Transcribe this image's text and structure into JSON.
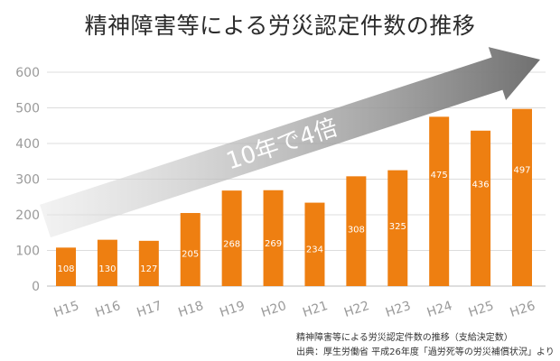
{
  "title": "精神障害等による労災認定件数の推移",
  "notes": {
    "line1": "精神障害等による労災認定件数の推移（支給決定数）",
    "line2": "出典：厚生労働省 平成26年度「過労死等の労災補償状況」より"
  },
  "colors": {
    "bar": "#ee7f11",
    "bar_label": "#ffffff",
    "grid": "#dcdcdc",
    "tick": "#9a9a9a",
    "arrow_start": "#e8e8e8",
    "arrow_end": "#707070",
    "arrow_text": "#ffffff"
  },
  "chart_data": {
    "type": "bar",
    "title": "精神障害等による労災認定件数の推移",
    "xlabel": "",
    "ylabel": "",
    "categories": [
      "H15",
      "H16",
      "H17",
      "H18",
      "H19",
      "H20",
      "H21",
      "H22",
      "H23",
      "H24",
      "H25",
      "H26"
    ],
    "values": [
      108,
      130,
      127,
      205,
      268,
      269,
      234,
      308,
      325,
      475,
      436,
      497
    ],
    "ylim": [
      0,
      600
    ],
    "yticks": [
      0,
      100,
      200,
      300,
      400,
      500,
      600
    ],
    "grid": true,
    "legend": "none",
    "annotation": "10年で4倍"
  }
}
